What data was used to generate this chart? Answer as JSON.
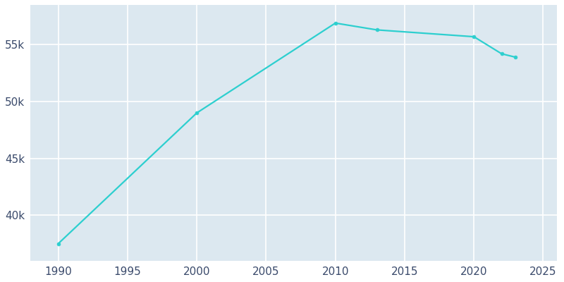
{
  "years": [
    1990,
    2000,
    2010,
    2013,
    2020,
    2022,
    2023
  ],
  "population": [
    37500,
    49000,
    56900,
    56300,
    55700,
    54200,
    53900
  ],
  "line_color": "#2dcfcf",
  "line_width": 1.6,
  "marker": "o",
  "marker_size": 3.5,
  "plot_bg_color": "#dce8f0",
  "fig_bg_color": "#ffffff",
  "grid_color": "#ffffff",
  "tick_color": "#3a4a6b",
  "xlim": [
    1988,
    2026
  ],
  "ylim": [
    36000,
    58500
  ],
  "xticks": [
    1990,
    1995,
    2000,
    2005,
    2010,
    2015,
    2020,
    2025
  ],
  "yticks": [
    40000,
    45000,
    50000,
    55000
  ],
  "ytick_labels": [
    "40k",
    "45k",
    "50k",
    "55k"
  ],
  "figsize": [
    8.0,
    4.0
  ],
  "dpi": 100
}
